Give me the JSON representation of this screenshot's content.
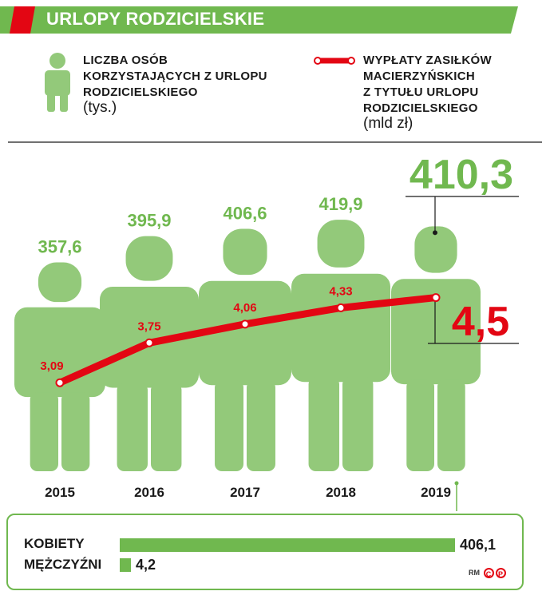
{
  "title": "URLOPY RODZICIELSKIE",
  "legend": {
    "people_line1": "LICZBA OSÓB",
    "people_line2": "KORZYSTAJĄCYCH Z URLOPU",
    "people_line3": "RODZICIELSKIEGO",
    "people_unit": "(tys.)",
    "payments_line1": "WYPŁATY ZASIŁKÓW",
    "payments_line2": "MACIERZYŃSKICH",
    "payments_line3": "Z TYTUŁU URLOPU",
    "payments_line4": "RODZICIELSKIEGO",
    "payments_unit": "(mld zł)"
  },
  "colors": {
    "green": "#70b84f",
    "light_green": "#93c97a",
    "red": "#e30613",
    "dark": "#1a1a1a"
  },
  "chart_data": {
    "type": "bar",
    "categories": [
      "2015",
      "2016",
      "2017",
      "2018",
      "2019"
    ],
    "series": [
      {
        "name": "LICZBA OSÓB KORZYSTAJĄCYCH Z URLOPU RODZICIELSKIEGO (tys.)",
        "values": [
          357.6,
          395.9,
          406.6,
          419.9,
          410.3
        ],
        "labels": [
          "357,6",
          "395,9",
          "406,6",
          "419,9",
          "410,3"
        ]
      },
      {
        "name": "WYPŁATY ZASIŁKÓW MACIERZYŃSKICH Z TYTUŁU URLOPU RODZICIELSKIEGO (mld zł)",
        "type": "line",
        "values": [
          3.09,
          3.75,
          4.06,
          4.33,
          4.5
        ],
        "labels": [
          "3,09",
          "3,75",
          "4,06",
          "4,33",
          "4,5"
        ]
      }
    ]
  },
  "gender": {
    "women_label": "KOBIETY",
    "women_value": 406.1,
    "women_value_label": "406,1",
    "men_label": "MĘŻCZYŹNI",
    "men_value": 4.2,
    "men_value_label": "4,2"
  },
  "credit": {
    "initials": "RM",
    "logo_letter": "P"
  }
}
